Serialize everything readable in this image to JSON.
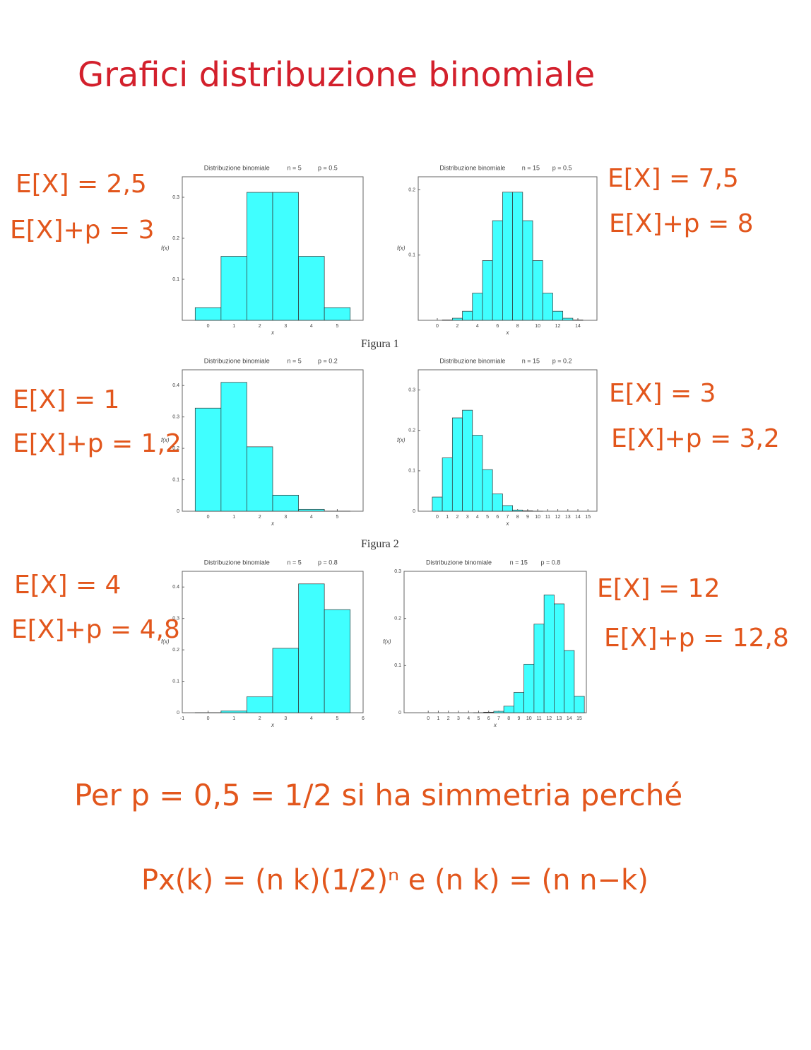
{
  "notes": {
    "title": "Grafici distribuzione binomiale",
    "annotations": [
      "E[X] = 2,5",
      "E[X]+p = 3",
      "E[X] = 7,5",
      "E[X]+p = 8",
      "E[X] = 1",
      "E[X]+p = 1,2",
      "E[X] = 3",
      "E[X]+p = 3,2",
      "E[X] = 4",
      "E[X]+p = 4,8",
      "E[X] = 12",
      "E[X]+p = 12,8"
    ],
    "figure_captions": [
      "Figura 1",
      "Figura 2"
    ],
    "conclusion": [
      "Per p = 0,5 = 1/2 si ha simmetria perché",
      "Px(k) = (n k)(1/2)ⁿ  e  (n k) = (n n−k)"
    ]
  },
  "chart_data": [
    {
      "type": "bar",
      "title": "Distribuzione binomiale",
      "params": [
        "n = 5",
        "p = 0.5"
      ],
      "xlabel": "x",
      "ylabel": "f(x)",
      "color": "#40ffff",
      "x": [
        0,
        1,
        2,
        3,
        4,
        5
      ],
      "values": [
        0.031,
        0.156,
        0.312,
        0.312,
        0.156,
        0.031
      ],
      "xlim": [
        -1,
        6
      ],
      "xticks": [
        0,
        1,
        2,
        3,
        4,
        5
      ],
      "ylim": [
        0,
        0.35
      ],
      "yticks": [
        0.1,
        0.2,
        0.3
      ]
    },
    {
      "type": "bar",
      "title": "Distribuzione binomiale",
      "params": [
        "n = 15",
        "p = 0.5"
      ],
      "xlabel": "x",
      "ylabel": "f(x)",
      "color": "#40ffff",
      "x": [
        0,
        1,
        2,
        3,
        4,
        5,
        6,
        7,
        8,
        9,
        10,
        11,
        12,
        13,
        14,
        15
      ],
      "values": [
        0.0,
        0.0005,
        0.0032,
        0.0139,
        0.0417,
        0.0916,
        0.1527,
        0.1964,
        0.1964,
        0.1527,
        0.0916,
        0.0417,
        0.0139,
        0.0032,
        0.0005,
        0.0
      ],
      "xlim": [
        -1.9,
        15.9
      ],
      "xticks": [
        0,
        2,
        4,
        6,
        8,
        10,
        12,
        14
      ],
      "ylim": [
        0,
        0.22
      ],
      "yticks": [
        0.1,
        0.2
      ]
    },
    {
      "type": "bar",
      "title": "Distribuzione binomiale",
      "params": [
        "n = 5",
        "p = 0.2"
      ],
      "xlabel": "x",
      "ylabel": "f(x)",
      "color": "#40ffff",
      "x": [
        0,
        1,
        2,
        3,
        4,
        5
      ],
      "values": [
        0.328,
        0.41,
        0.205,
        0.051,
        0.006,
        0.0003
      ],
      "xlim": [
        -1,
        6
      ],
      "xticks": [
        0,
        1,
        2,
        3,
        4,
        5
      ],
      "ylim": [
        0,
        0.45
      ],
      "yticks": [
        0,
        0.1,
        0.2,
        0.3,
        0.4
      ]
    },
    {
      "type": "bar",
      "title": "Distribuzione binomiale",
      "params": [
        "n = 15",
        "p = 0.2"
      ],
      "xlabel": "x",
      "ylabel": "f(x)",
      "color": "#40ffff",
      "x": [
        0,
        1,
        2,
        3,
        4,
        5,
        6,
        7,
        8,
        9,
        10,
        11,
        12,
        13,
        14,
        15
      ],
      "values": [
        0.035,
        0.132,
        0.231,
        0.25,
        0.188,
        0.103,
        0.043,
        0.014,
        0.003,
        0.001,
        0.0001,
        0.0,
        0.0,
        0.0,
        0.0,
        0.0
      ],
      "xlim": [
        -1.9,
        15.9
      ],
      "xticks": [
        0,
        1,
        2,
        3,
        4,
        5,
        6,
        7,
        8,
        9,
        10,
        11,
        12,
        13,
        14,
        15
      ],
      "ylim": [
        0,
        0.35
      ],
      "yticks": [
        0,
        0.1,
        0.2,
        0.3
      ]
    },
    {
      "type": "bar",
      "title": "Distribuzione binomiale",
      "params": [
        "n = 5",
        "p = 0.8"
      ],
      "xlabel": "x",
      "ylabel": "f(x)",
      "color": "#40ffff",
      "x": [
        0,
        1,
        2,
        3,
        4,
        5
      ],
      "values": [
        0.0003,
        0.006,
        0.051,
        0.205,
        0.41,
        0.328
      ],
      "xlim": [
        -1,
        6
      ],
      "xticks": [
        -1,
        0,
        1,
        2,
        3,
        4,
        5,
        6
      ],
      "ylim": [
        0,
        0.45
      ],
      "yticks": [
        0,
        0.1,
        0.2,
        0.3,
        0.4
      ]
    },
    {
      "type": "bar",
      "title": "Distribuzione binomiale",
      "params": [
        "n = 15",
        "p = 0.8"
      ],
      "xlabel": "x",
      "ylabel": "f(x)",
      "color": "#40ffff",
      "x": [
        0,
        1,
        2,
        3,
        4,
        5,
        6,
        7,
        8,
        9,
        10,
        11,
        12,
        13,
        14,
        15
      ],
      "values": [
        0.0,
        0.0,
        0.0,
        0.0,
        0.0,
        0.0001,
        0.001,
        0.003,
        0.014,
        0.043,
        0.103,
        0.188,
        0.25,
        0.231,
        0.132,
        0.035
      ],
      "xlim": [
        -2.4,
        15.7
      ],
      "xticks": [
        0,
        1,
        2,
        3,
        4,
        5,
        6,
        7,
        8,
        9,
        10,
        11,
        12,
        13,
        14,
        15
      ],
      "ylim": [
        0,
        0.3
      ],
      "yticks": [
        0,
        0.1,
        0.2,
        0.3
      ]
    }
  ]
}
